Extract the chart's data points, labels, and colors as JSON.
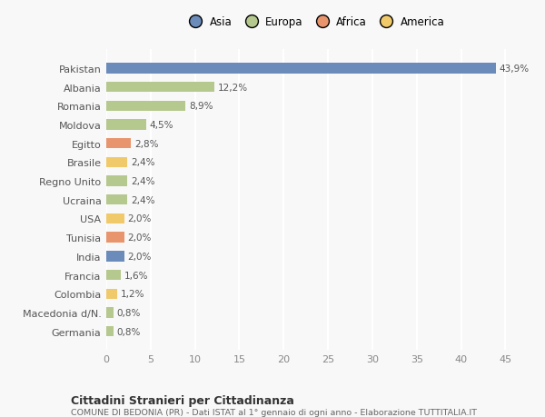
{
  "countries": [
    "Pakistan",
    "Albania",
    "Romania",
    "Moldova",
    "Egitto",
    "Brasile",
    "Regno Unito",
    "Ucraina",
    "USA",
    "Tunisia",
    "India",
    "Francia",
    "Colombia",
    "Macedonia d/N.",
    "Germania"
  ],
  "values": [
    43.9,
    12.2,
    8.9,
    4.5,
    2.8,
    2.4,
    2.4,
    2.4,
    2.0,
    2.0,
    2.0,
    1.6,
    1.2,
    0.8,
    0.8
  ],
  "labels": [
    "43,9%",
    "12,2%",
    "8,9%",
    "4,5%",
    "2,8%",
    "2,4%",
    "2,4%",
    "2,4%",
    "2,0%",
    "2,0%",
    "2,0%",
    "1,6%",
    "1,2%",
    "0,8%",
    "0,8%"
  ],
  "colors": [
    "#6b8cba",
    "#b5c98e",
    "#b5c98e",
    "#b5c98e",
    "#e8956d",
    "#f0c96b",
    "#b5c98e",
    "#b5c98e",
    "#f0c96b",
    "#e8956d",
    "#6b8cba",
    "#b5c98e",
    "#f0c96b",
    "#b5c98e",
    "#b5c98e"
  ],
  "legend_labels": [
    "Asia",
    "Europa",
    "Africa",
    "America"
  ],
  "legend_colors": [
    "#6b8cba",
    "#b5c98e",
    "#e8956d",
    "#f0c96b"
  ],
  "title": "Cittadini Stranieri per Cittadinanza",
  "subtitle": "COMUNE DI BEDONIA (PR) - Dati ISTAT al 1° gennaio di ogni anno - Elaborazione TUTTITALIA.IT",
  "xlim": [
    0,
    47
  ],
  "xticks": [
    0,
    5,
    10,
    15,
    20,
    25,
    30,
    35,
    40,
    45
  ],
  "background_color": "#f8f8f8",
  "grid_color": "#ffffff",
  "bar_height": 0.55
}
